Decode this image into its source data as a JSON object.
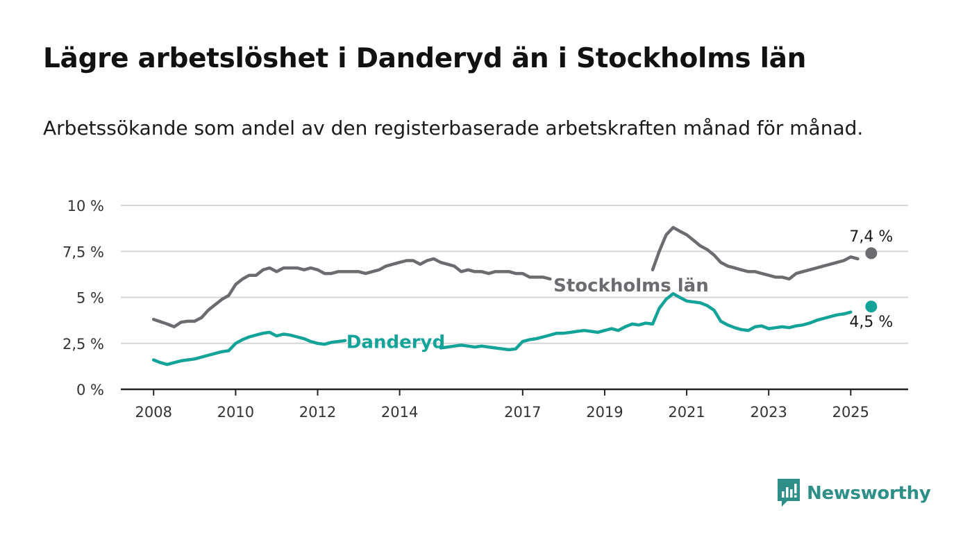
{
  "title": "Lägre arbetslöshet i Danderyd än i Stockholms län",
  "subtitle": "Arbetssökande som andel av den registerbaserade arbetskraften månad för månad.",
  "brand": {
    "name": "Newsworthy",
    "icon": "newsworthy-logo-icon",
    "color": "#2e8f88"
  },
  "chart_data": {
    "type": "line",
    "title": "Lägre arbetslöshet i Danderyd än i Stockholms län",
    "xlabel": "",
    "ylabel": "",
    "x_tick_labels": [
      "2008",
      "2010",
      "2012",
      "2014",
      "2017",
      "2019",
      "2021",
      "2023",
      "2025"
    ],
    "x_tick_values": [
      2008,
      2010,
      2012,
      2014,
      2017,
      2019,
      2021,
      2023,
      2025
    ],
    "xlim": [
      2007.2,
      2026.4
    ],
    "y_tick_labels": [
      "0 %",
      "2,5 %",
      "5 %",
      "7,5 %",
      "10 %"
    ],
    "y_tick_values": [
      0,
      2.5,
      5,
      7.5,
      10
    ],
    "ylim": [
      0,
      10
    ],
    "grid": "horizontal",
    "legend": "labels placed directly on lines",
    "series": [
      {
        "name": "Stockholms län",
        "color": "#6b6b70",
        "end_label": "7,4 %",
        "points": [
          [
            2008.0,
            3.8
          ],
          [
            2008.33,
            3.55
          ],
          [
            2008.5,
            3.4
          ],
          [
            2008.67,
            3.65
          ],
          [
            2008.83,
            3.7
          ],
          [
            2009.0,
            3.7
          ],
          [
            2009.17,
            3.9
          ],
          [
            2009.33,
            4.3
          ],
          [
            2009.5,
            4.6
          ],
          [
            2009.67,
            4.9
          ],
          [
            2009.83,
            5.1
          ],
          [
            2010.0,
            5.7
          ],
          [
            2010.17,
            6.0
          ],
          [
            2010.33,
            6.2
          ],
          [
            2010.5,
            6.2
          ],
          [
            2010.67,
            6.5
          ],
          [
            2010.83,
            6.6
          ],
          [
            2011.0,
            6.4
          ],
          [
            2011.17,
            6.6
          ],
          [
            2011.33,
            6.6
          ],
          [
            2011.5,
            6.6
          ],
          [
            2011.67,
            6.5
          ],
          [
            2011.83,
            6.6
          ],
          [
            2012.0,
            6.5
          ],
          [
            2012.17,
            6.3
          ],
          [
            2012.33,
            6.3
          ],
          [
            2012.5,
            6.4
          ],
          [
            2012.67,
            6.4
          ],
          [
            2012.83,
            6.4
          ],
          [
            2013.0,
            6.4
          ],
          [
            2013.17,
            6.3
          ],
          [
            2013.33,
            6.4
          ],
          [
            2013.5,
            6.5
          ],
          [
            2013.67,
            6.7
          ],
          [
            2013.83,
            6.8
          ],
          [
            2014.0,
            6.9
          ],
          [
            2014.17,
            7.0
          ],
          [
            2014.33,
            7.0
          ],
          [
            2014.5,
            6.8
          ],
          [
            2014.67,
            7.0
          ],
          [
            2014.83,
            7.1
          ],
          [
            2015.0,
            6.9
          ],
          [
            2015.17,
            6.8
          ],
          [
            2015.33,
            6.7
          ],
          [
            2015.5,
            6.4
          ],
          [
            2015.67,
            6.5
          ],
          [
            2015.83,
            6.4
          ],
          [
            2016.0,
            6.4
          ],
          [
            2016.17,
            6.3
          ],
          [
            2016.33,
            6.4
          ],
          [
            2016.5,
            6.4
          ],
          [
            2016.67,
            6.4
          ],
          [
            2016.83,
            6.3
          ],
          [
            2017.0,
            6.3
          ],
          [
            2017.17,
            6.1
          ],
          [
            2017.33,
            6.1
          ],
          [
            2017.5,
            6.1
          ],
          [
            2017.67,
            6.0
          ],
          [
            2017.83,
            6.1
          ],
          [
            2018.0,
            6.0
          ],
          [
            2018.17,
            6.1
          ],
          [
            2018.33,
            6.0
          ],
          [
            2018.5,
            6.0
          ],
          [
            2018.67,
            6.1
          ],
          [
            2018.83,
            6.0
          ],
          [
            2019.0,
            6.1
          ],
          [
            2019.17,
            6.1
          ],
          [
            2019.33,
            6.0
          ],
          [
            2019.5,
            6.1
          ],
          [
            2019.67,
            6.2
          ],
          [
            2019.83,
            6.3
          ],
          [
            2020.0,
            6.4
          ],
          [
            2020.17,
            6.5
          ],
          [
            2020.33,
            7.5
          ],
          [
            2020.5,
            8.4
          ],
          [
            2020.67,
            8.8
          ],
          [
            2020.83,
            8.6
          ],
          [
            2021.0,
            8.4
          ],
          [
            2021.17,
            8.1
          ],
          [
            2021.33,
            7.8
          ],
          [
            2021.5,
            7.6
          ],
          [
            2021.67,
            7.3
          ],
          [
            2021.83,
            6.9
          ],
          [
            2022.0,
            6.7
          ],
          [
            2022.17,
            6.6
          ],
          [
            2022.33,
            6.5
          ],
          [
            2022.5,
            6.4
          ],
          [
            2022.67,
            6.4
          ],
          [
            2022.83,
            6.3
          ],
          [
            2023.0,
            6.2
          ],
          [
            2023.17,
            6.1
          ],
          [
            2023.33,
            6.1
          ],
          [
            2023.5,
            6.0
          ],
          [
            2023.67,
            6.3
          ],
          [
            2023.83,
            6.4
          ],
          [
            2024.0,
            6.5
          ],
          [
            2024.17,
            6.6
          ],
          [
            2024.33,
            6.7
          ],
          [
            2024.5,
            6.8
          ],
          [
            2024.67,
            6.9
          ],
          [
            2024.83,
            7.0
          ],
          [
            2025.0,
            7.2
          ],
          [
            2025.17,
            7.1
          ],
          [
            2025.5,
            7.4
          ]
        ]
      },
      {
        "name": "Danderyd",
        "color": "#13a398",
        "end_label": "4,5 %",
        "points": [
          [
            2008.0,
            1.6
          ],
          [
            2008.17,
            1.45
          ],
          [
            2008.33,
            1.35
          ],
          [
            2008.5,
            1.45
          ],
          [
            2008.67,
            1.55
          ],
          [
            2008.83,
            1.6
          ],
          [
            2009.0,
            1.65
          ],
          [
            2009.17,
            1.75
          ],
          [
            2009.33,
            1.85
          ],
          [
            2009.5,
            1.95
          ],
          [
            2009.67,
            2.05
          ],
          [
            2009.83,
            2.1
          ],
          [
            2010.0,
            2.5
          ],
          [
            2010.17,
            2.7
          ],
          [
            2010.33,
            2.85
          ],
          [
            2010.5,
            2.95
          ],
          [
            2010.67,
            3.05
          ],
          [
            2010.83,
            3.1
          ],
          [
            2011.0,
            2.9
          ],
          [
            2011.17,
            3.0
          ],
          [
            2011.33,
            2.95
          ],
          [
            2011.5,
            2.85
          ],
          [
            2011.67,
            2.75
          ],
          [
            2011.83,
            2.6
          ],
          [
            2012.0,
            2.5
          ],
          [
            2012.17,
            2.45
          ],
          [
            2012.33,
            2.55
          ],
          [
            2012.5,
            2.6
          ],
          [
            2012.67,
            2.65
          ],
          [
            2012.83,
            2.7
          ],
          [
            2013.0,
            2.75
          ],
          [
            2013.17,
            2.8
          ],
          [
            2013.33,
            2.75
          ],
          [
            2013.5,
            2.85
          ],
          [
            2013.67,
            2.9
          ],
          [
            2013.83,
            2.85
          ],
          [
            2014.0,
            2.7
          ],
          [
            2014.17,
            2.6
          ],
          [
            2014.33,
            2.5
          ],
          [
            2014.5,
            2.4
          ],
          [
            2014.67,
            2.35
          ],
          [
            2014.83,
            2.3
          ],
          [
            2015.0,
            2.25
          ],
          [
            2015.17,
            2.3
          ],
          [
            2015.33,
            2.35
          ],
          [
            2015.5,
            2.4
          ],
          [
            2015.67,
            2.35
          ],
          [
            2015.83,
            2.3
          ],
          [
            2016.0,
            2.35
          ],
          [
            2016.17,
            2.3
          ],
          [
            2016.33,
            2.25
          ],
          [
            2016.5,
            2.2
          ],
          [
            2016.67,
            2.15
          ],
          [
            2016.83,
            2.2
          ],
          [
            2017.0,
            2.6
          ],
          [
            2017.17,
            2.7
          ],
          [
            2017.33,
            2.75
          ],
          [
            2017.5,
            2.85
          ],
          [
            2017.67,
            2.95
          ],
          [
            2017.83,
            3.05
          ],
          [
            2018.0,
            3.05
          ],
          [
            2018.17,
            3.1
          ],
          [
            2018.33,
            3.15
          ],
          [
            2018.5,
            3.2
          ],
          [
            2018.67,
            3.15
          ],
          [
            2018.83,
            3.1
          ],
          [
            2019.0,
            3.2
          ],
          [
            2019.17,
            3.3
          ],
          [
            2019.33,
            3.2
          ],
          [
            2019.5,
            3.4
          ],
          [
            2019.67,
            3.55
          ],
          [
            2019.83,
            3.5
          ],
          [
            2020.0,
            3.6
          ],
          [
            2020.17,
            3.55
          ],
          [
            2020.33,
            4.4
          ],
          [
            2020.5,
            4.9
          ],
          [
            2020.67,
            5.2
          ],
          [
            2020.83,
            5.0
          ],
          [
            2021.0,
            4.8
          ],
          [
            2021.17,
            4.75
          ],
          [
            2021.33,
            4.7
          ],
          [
            2021.5,
            4.55
          ],
          [
            2021.67,
            4.3
          ],
          [
            2021.83,
            3.7
          ],
          [
            2022.0,
            3.5
          ],
          [
            2022.17,
            3.35
          ],
          [
            2022.33,
            3.25
          ],
          [
            2022.5,
            3.2
          ],
          [
            2022.67,
            3.4
          ],
          [
            2022.83,
            3.45
          ],
          [
            2023.0,
            3.3
          ],
          [
            2023.17,
            3.35
          ],
          [
            2023.33,
            3.4
          ],
          [
            2023.5,
            3.35
          ],
          [
            2023.67,
            3.45
          ],
          [
            2023.83,
            3.5
          ],
          [
            2024.0,
            3.6
          ],
          [
            2024.17,
            3.75
          ],
          [
            2024.33,
            3.85
          ],
          [
            2024.5,
            3.95
          ],
          [
            2024.67,
            4.05
          ],
          [
            2024.83,
            4.1
          ],
          [
            2025.0,
            4.2
          ],
          [
            2025.5,
            4.5
          ]
        ]
      }
    ]
  }
}
